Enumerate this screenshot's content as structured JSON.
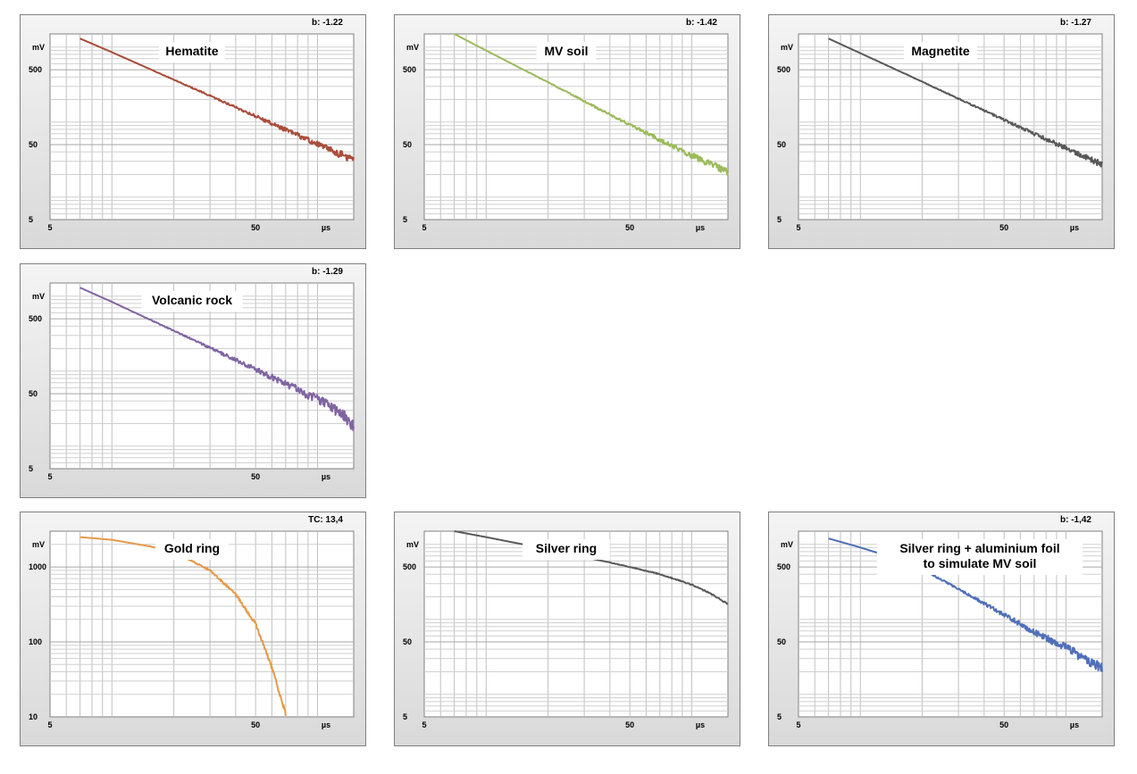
{
  "chart_data": [
    {
      "type": "line",
      "title": "Hematite",
      "badge": "b: -1.22",
      "xlabel": "µs",
      "ylabel": "mV",
      "xscale": "log",
      "yscale": "log",
      "xlim": [
        5,
        150
      ],
      "ylim": [
        5,
        1500
      ],
      "xticks": [
        "5",
        "50",
        "µs"
      ],
      "yticks": [
        "5",
        "50",
        "500"
      ],
      "ytick_values": [
        5,
        50,
        500
      ],
      "color": "#a94c3a",
      "series": [
        {
          "x": [
            7,
            10,
            20,
            30,
            50,
            70,
            100,
            150
          ],
          "y": [
            1300,
            855,
            368,
            224,
            120,
            79,
            51,
            31
          ]
        }
      ],
      "noise": 0.05
    },
    {
      "type": "line",
      "title": "MV soil",
      "badge": "b: -1.42",
      "xlabel": "µs",
      "ylabel": "mV",
      "xscale": "log",
      "yscale": "log",
      "xlim": [
        5,
        150
      ],
      "ylim": [
        5,
        1500
      ],
      "xticks": [
        "5",
        "50",
        "µs"
      ],
      "yticks": [
        "5",
        "50",
        "500"
      ],
      "ytick_values": [
        5,
        50,
        500
      ],
      "color": "#9bbb59",
      "series": [
        {
          "x": [
            7,
            10,
            20,
            30,
            50,
            70,
            100,
            150
          ],
          "y": [
            1500,
            900,
            340,
            190,
            92,
            58,
            36,
            22
          ]
        }
      ],
      "noise": 0.05
    },
    {
      "type": "line",
      "title": "Magnetite",
      "badge": "b: -1.27",
      "xlabel": "µs",
      "ylabel": "mV",
      "xscale": "log",
      "yscale": "log",
      "xlim": [
        5,
        150
      ],
      "ylim": [
        5,
        1500
      ],
      "xticks": [
        "5",
        "50",
        "µs"
      ],
      "yticks": [
        "5",
        "50",
        "500"
      ],
      "ytick_values": [
        5,
        50,
        500
      ],
      "color": "#595959",
      "series": [
        {
          "x": [
            7,
            10,
            20,
            30,
            50,
            70,
            100,
            150
          ],
          "y": [
            1300,
            830,
            345,
            205,
            107,
            70,
            45,
            27
          ]
        }
      ],
      "noise": 0.04
    },
    {
      "type": "line",
      "title": "Volcanic rock",
      "badge": "b: -1.29",
      "xlabel": "µs",
      "ylabel": "mV",
      "xscale": "log",
      "yscale": "log",
      "xlim": [
        5,
        150
      ],
      "ylim": [
        5,
        1500
      ],
      "xticks": [
        "5",
        "50",
        "µs"
      ],
      "yticks": [
        "5",
        "50",
        "500"
      ],
      "ytick_values": [
        5,
        50,
        500
      ],
      "color": "#8064a2",
      "series": [
        {
          "x": [
            7,
            10,
            20,
            30,
            50,
            70,
            100,
            130,
            150
          ],
          "y": [
            1300,
            840,
            345,
            205,
            106,
            68,
            42,
            28,
            18
          ]
        }
      ],
      "noise": 0.08
    },
    {
      "type": "line",
      "title": "Gold ring",
      "badge": "TC: 13,4",
      "xlabel": "µs",
      "ylabel": "mV",
      "xscale": "log",
      "yscale": "log",
      "xlim": [
        5,
        150
      ],
      "ylim": [
        10,
        3000
      ],
      "xticks": [
        "5",
        "50",
        "µs"
      ],
      "yticks": [
        "10",
        "100",
        "1000"
      ],
      "ytick_values": [
        10,
        100,
        1000
      ],
      "color": "#e69a4a",
      "series": [
        {
          "x": [
            7,
            10,
            15,
            20,
            30,
            40,
            50,
            60,
            70
          ],
          "y": [
            2500,
            2300,
            1900,
            1600,
            900,
            430,
            175,
            45,
            11
          ]
        }
      ],
      "noise": 0.03
    },
    {
      "type": "line",
      "title": "Silver ring",
      "badge": "",
      "xlabel": "µs",
      "ylabel": "mV",
      "xscale": "log",
      "yscale": "log",
      "xlim": [
        5,
        150
      ],
      "ylim": [
        5,
        1500
      ],
      "xticks": [
        "5",
        "50",
        "µs"
      ],
      "yticks": [
        "5",
        "50",
        "500"
      ],
      "ytick_values": [
        5,
        50,
        500
      ],
      "color": "#595959",
      "series": [
        {
          "x": [
            7,
            10,
            20,
            30,
            50,
            70,
            100,
            120,
            150
          ],
          "y": [
            1500,
            1250,
            860,
            680,
            500,
            400,
            290,
            230,
            160
          ]
        }
      ],
      "noise": 0.01
    },
    {
      "type": "line",
      "title": "Silver ring + aluminium foil\nto simulate MV soil",
      "badge": "b: -1,42",
      "xlabel": "µs",
      "ylabel": "mV",
      "xscale": "log",
      "yscale": "log",
      "xlim": [
        5,
        150
      ],
      "ylim": [
        5,
        1500
      ],
      "xticks": [
        "5",
        "50",
        "µs"
      ],
      "yticks": [
        "5",
        "50",
        "500"
      ],
      "ytick_values": [
        5,
        50,
        500
      ],
      "color": "#4f6fb8",
      "series": [
        {
          "x": [
            7,
            10,
            15,
            20,
            30,
            50,
            70,
            100,
            150
          ],
          "y": [
            1200,
            910,
            640,
            460,
            255,
            115,
            68,
            42,
            22
          ]
        }
      ],
      "noise": 0.07
    }
  ]
}
